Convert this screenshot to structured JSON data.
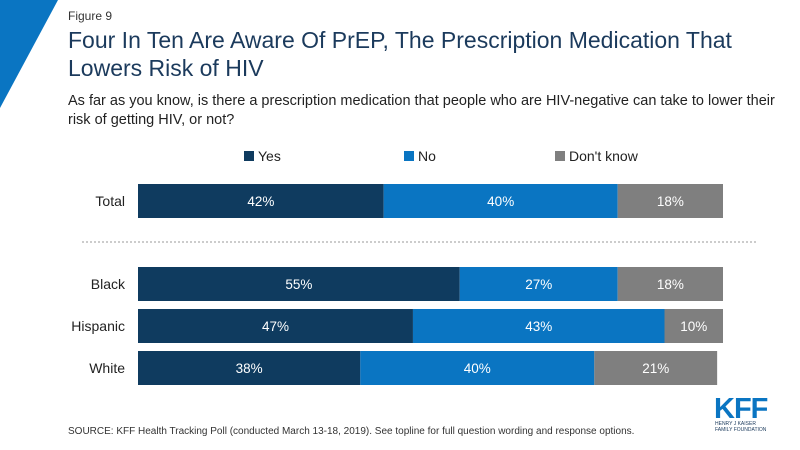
{
  "figure_label": "Figure 9",
  "title": "Four In Ten Are Aware Of PrEP, The Prescription Medication That Lowers Risk of HIV",
  "subtitle": "As far as you know, is there a prescription medication that people who are HIV-negative can take to lower their risk of getting HIV, or not?",
  "source": "SOURCE: KFF Health Tracking Poll (conducted March 13-18, 2019). See topline for full question wording and response options.",
  "logo": {
    "main": "KFF",
    "line1": "HENRY J KAISER",
    "line2": "FAMILY FOUNDATION"
  },
  "colors": {
    "yes": "#0f3b5f",
    "no": "#0a75c2",
    "dont_know": "#7f7f7f",
    "corner": "#0a75c2"
  },
  "chart_data": {
    "type": "bar",
    "orientation": "horizontal",
    "stacked": true,
    "categories": [
      "Total",
      "Black",
      "Hispanic",
      "White"
    ],
    "series": [
      {
        "name": "Yes",
        "values": [
          42,
          55,
          47,
          38
        ]
      },
      {
        "name": "No",
        "values": [
          40,
          27,
          43,
          40
        ]
      },
      {
        "name": "Don't know",
        "values": [
          18,
          18,
          10,
          21
        ]
      }
    ],
    "value_suffix": "%",
    "legend_position": "top",
    "separator_after": "Total"
  }
}
